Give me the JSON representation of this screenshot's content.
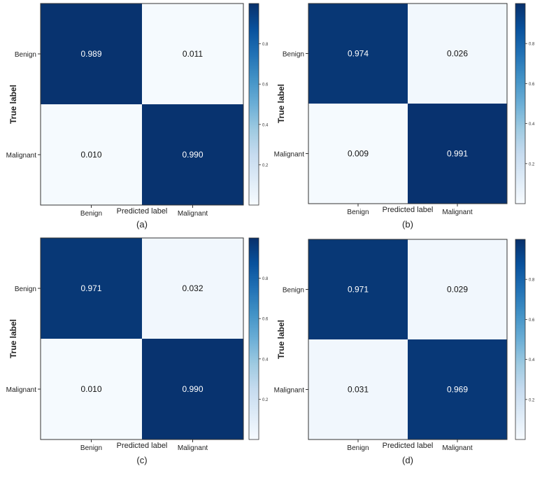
{
  "chart_data": [
    {
      "type": "heatmap",
      "panel_label": "(a)",
      "xlabel": "Predicted label",
      "ylabel": "True label",
      "x_categories": [
        "Benign",
        "Malignant"
      ],
      "y_categories": [
        "Benign",
        "Malignant"
      ],
      "values": [
        [
          0.989,
          0.011
        ],
        [
          0.01,
          0.99
        ]
      ],
      "colorbar": {
        "range": [
          0.0,
          1.0
        ],
        "ticks": [
          "0.2",
          "0.4",
          "0.6",
          "0.8"
        ]
      }
    },
    {
      "type": "heatmap",
      "panel_label": "(b)",
      "xlabel": "Predicted label",
      "ylabel": "True label",
      "x_categories": [
        "Benign",
        "Malignant"
      ],
      "y_categories": [
        "Benign",
        "Malignant"
      ],
      "values": [
        [
          0.974,
          0.026
        ],
        [
          0.009,
          0.991
        ]
      ],
      "colorbar": {
        "range": [
          0.0,
          1.0
        ],
        "ticks": [
          "0.2",
          "0.4",
          "0.6",
          "0.8"
        ]
      }
    },
    {
      "type": "heatmap",
      "panel_label": "(c)",
      "xlabel": "Predicted label",
      "ylabel": "True label",
      "x_categories": [
        "Benign",
        "Malignant"
      ],
      "y_categories": [
        "Benign",
        "Malignant"
      ],
      "values": [
        [
          0.971,
          0.032
        ],
        [
          0.01,
          0.99
        ]
      ],
      "colorbar": {
        "range": [
          0.0,
          1.0
        ],
        "ticks": [
          "0.2",
          "0.4",
          "0.6",
          "0.8"
        ]
      }
    },
    {
      "type": "heatmap",
      "panel_label": "(d)",
      "xlabel": "Predicted label",
      "ylabel": "True label",
      "x_categories": [
        "Benign",
        "Malignant"
      ],
      "y_categories": [
        "Benign",
        "Malignant"
      ],
      "values": [
        [
          0.971,
          0.029
        ],
        [
          0.031,
          0.969
        ]
      ],
      "colorbar": {
        "range": [
          0.0,
          1.0
        ],
        "ticks": [
          "0.2",
          "0.4",
          "0.6",
          "0.8"
        ]
      }
    }
  ],
  "colors": {
    "high": "#08306b",
    "low": "#f7fbff",
    "text_on_dark": "#ffffff",
    "text_on_light": "#111111"
  }
}
